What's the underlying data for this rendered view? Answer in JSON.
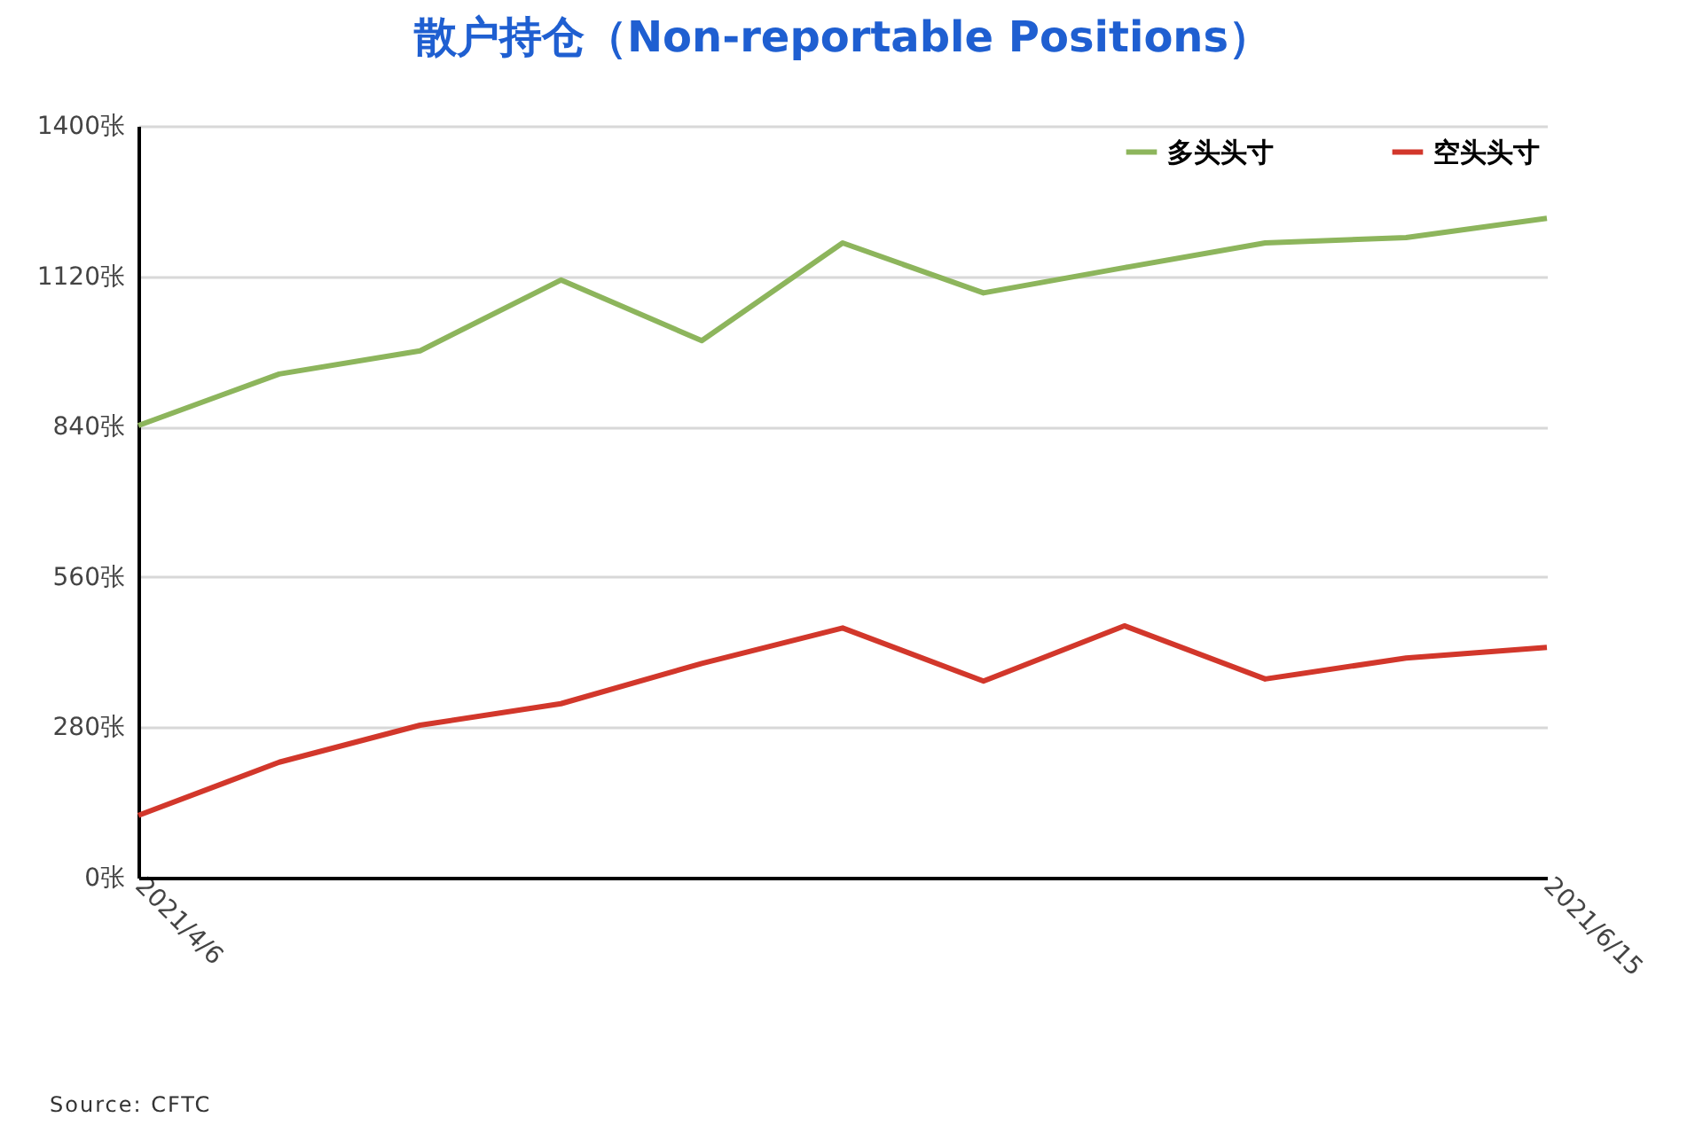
{
  "chart_data": {
    "type": "line",
    "title": "散户持仓（Non-reportable Positions）",
    "categories": [
      "2021/4/6",
      null,
      null,
      null,
      null,
      null,
      null,
      null,
      null,
      null,
      "2021/6/15"
    ],
    "series": [
      {
        "name": "多头头寸",
        "color": "#8db55c",
        "values": [
          842,
          938,
          981,
          1113,
          1000,
          1182,
          1089,
          1136,
          1182,
          1192,
          1228
        ]
      },
      {
        "name": "空头头寸",
        "color": "#d2372b",
        "values": [
          116,
          215,
          284,
          324,
          399,
          465,
          366,
          469,
          370,
          409,
          429
        ]
      }
    ],
    "ylim": [
      0,
      1400
    ],
    "yticks": [
      {
        "value": 0,
        "label": "0张"
      },
      {
        "value": 280,
        "label": "280张"
      },
      {
        "value": 560,
        "label": "560张"
      },
      {
        "value": 840,
        "label": "840张"
      },
      {
        "value": 1120,
        "label": "1120张"
      },
      {
        "value": 1400,
        "label": "1400张"
      }
    ],
    "grid": "y",
    "legend": "top right",
    "marker": "none",
    "line_style": "solid",
    "annotations": [
      "Source: CFTC"
    ]
  }
}
